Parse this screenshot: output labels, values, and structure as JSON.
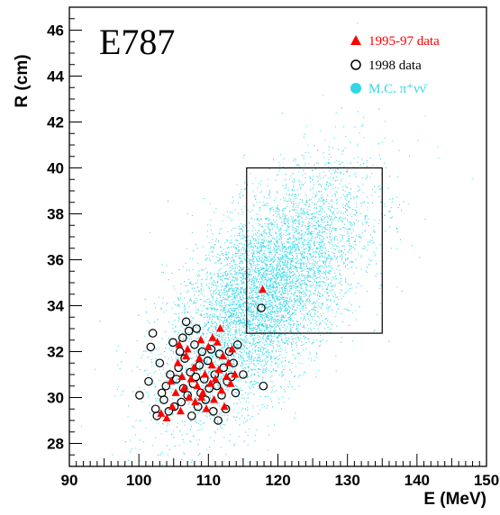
{
  "chart_data": {
    "type": "scatter",
    "title": "",
    "experiment_label": "E787",
    "xlabel": "E (MeV)",
    "ylabel": "R (cm)",
    "xlim": [
      90,
      150
    ],
    "ylim": [
      27,
      47
    ],
    "xticks": [
      "90",
      "100",
      "110",
      "120",
      "130",
      "140",
      "150"
    ],
    "yticks": [
      "28",
      "30",
      "32",
      "34",
      "36",
      "38",
      "40",
      "42",
      "44",
      "46"
    ],
    "grid": false,
    "legend_position": "top-right",
    "signal_box": {
      "x": [
        115.5,
        135
      ],
      "y": [
        32.8,
        40
      ]
    },
    "colors": {
      "data_1995_97": "#ff0000",
      "data_1998": "#000000",
      "mc": "#33d6e6"
    },
    "series": [
      {
        "name": "1995-97 data",
        "marker": "triangle",
        "points": [
          [
            103.2,
            29.3
          ],
          [
            104.0,
            29.1
          ],
          [
            104.6,
            30.7
          ],
          [
            104.8,
            29.6
          ],
          [
            105.3,
            30.2
          ],
          [
            105.6,
            31.5
          ],
          [
            105.8,
            32.3
          ],
          [
            106.2,
            30.9
          ],
          [
            106.5,
            30.4
          ],
          [
            106.8,
            31.8
          ],
          [
            107.0,
            32.1
          ],
          [
            107.2,
            30.0
          ],
          [
            107.5,
            30.8
          ],
          [
            107.9,
            31.3
          ],
          [
            108.1,
            29.8
          ],
          [
            108.4,
            30.5
          ],
          [
            108.7,
            31.7
          ],
          [
            108.9,
            32.5
          ],
          [
            109.2,
            30.2
          ],
          [
            109.5,
            31.0
          ],
          [
            109.7,
            29.5
          ],
          [
            110.0,
            32.2
          ],
          [
            110.3,
            30.6
          ],
          [
            110.5,
            31.4
          ],
          [
            110.8,
            29.9
          ],
          [
            111.0,
            30.8
          ],
          [
            111.3,
            32.4
          ],
          [
            111.5,
            31.2
          ],
          [
            111.7,
            33.0
          ],
          [
            111.9,
            30.3
          ],
          [
            112.1,
            31.8
          ],
          [
            112.3,
            29.6
          ],
          [
            112.6,
            30.9
          ],
          [
            112.9,
            31.5
          ],
          [
            113.2,
            30.6
          ],
          [
            113.4,
            32.1
          ],
          [
            113.8,
            31.0
          ],
          [
            106.0,
            29.4
          ],
          [
            109.0,
            30.0
          ],
          [
            110.6,
            32.6
          ],
          [
            117.8,
            34.7
          ]
        ]
      },
      {
        "name": "1998 data",
        "marker": "circle",
        "points": [
          [
            100.1,
            30.1
          ],
          [
            101.4,
            30.7
          ],
          [
            101.7,
            32.2
          ],
          [
            102.0,
            32.8
          ],
          [
            102.4,
            29.5
          ],
          [
            102.6,
            29.2
          ],
          [
            103.0,
            31.5
          ],
          [
            103.3,
            30.2
          ],
          [
            103.6,
            29.9
          ],
          [
            103.9,
            30.5
          ],
          [
            104.3,
            29.4
          ],
          [
            104.5,
            31.0
          ],
          [
            104.9,
            32.4
          ],
          [
            105.1,
            29.6
          ],
          [
            105.4,
            30.8
          ],
          [
            105.7,
            31.3
          ],
          [
            105.9,
            32.0
          ],
          [
            106.1,
            29.8
          ],
          [
            106.4,
            30.4
          ],
          [
            106.6,
            31.7
          ],
          [
            106.8,
            33.3
          ],
          [
            107.0,
            30.1
          ],
          [
            107.2,
            32.9
          ],
          [
            107.4,
            31.1
          ],
          [
            107.6,
            29.2
          ],
          [
            107.8,
            30.6
          ],
          [
            108.0,
            32.3
          ],
          [
            108.2,
            30.9
          ],
          [
            108.5,
            29.6
          ],
          [
            108.7,
            31.4
          ],
          [
            108.9,
            30.2
          ],
          [
            109.1,
            32.0
          ],
          [
            109.4,
            30.8
          ],
          [
            109.6,
            29.9
          ],
          [
            109.9,
            31.6
          ],
          [
            110.1,
            30.4
          ],
          [
            110.4,
            32.1
          ],
          [
            110.7,
            29.4
          ],
          [
            110.9,
            31.0
          ],
          [
            111.2,
            30.5
          ],
          [
            111.4,
            29.0
          ],
          [
            111.6,
            31.9
          ],
          [
            111.9,
            30.1
          ],
          [
            112.2,
            31.3
          ],
          [
            112.5,
            29.5
          ],
          [
            112.7,
            30.7
          ],
          [
            113.0,
            32.0
          ],
          [
            113.3,
            30.9
          ],
          [
            113.6,
            31.5
          ],
          [
            113.9,
            30.2
          ],
          [
            114.2,
            32.3
          ],
          [
            115.0,
            31.0
          ],
          [
            117.9,
            30.5
          ],
          [
            117.6,
            33.9
          ],
          [
            106.3,
            32.6
          ],
          [
            108.3,
            33.0
          ]
        ]
      },
      {
        "name": "M.C. π⁺νν̄",
        "marker": "dot",
        "cloud": {
          "count": 9000,
          "x_mean": 118,
          "y_mean": 34.5,
          "x_sd": 7,
          "y_sd": 2.6,
          "correlation": 0.62
        }
      }
    ]
  }
}
